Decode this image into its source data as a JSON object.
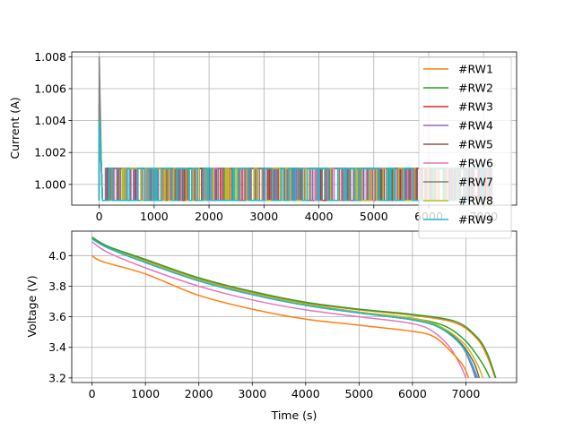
{
  "chart_data": [
    {
      "type": "line",
      "title": "",
      "xlabel": "",
      "ylabel": "Current (A)",
      "xlim": [
        -500,
        7600
      ],
      "ylim": [
        0.9987,
        1.0083
      ],
      "xticks": [
        0,
        1000,
        2000,
        3000,
        4000,
        5000,
        6000,
        7000
      ],
      "xtick_labels": [
        "0",
        "1000",
        "2000",
        "3000",
        "4000",
        "5000",
        "6000",
        "7000"
      ],
      "yticks": [
        1.0,
        1.002,
        1.004,
        1.006,
        1.008
      ],
      "ytick_labels": [
        "1.000",
        "1.002",
        "1.004",
        "1.006",
        "1.008"
      ],
      "grid": true,
      "legend": "right",
      "description": "Current toggles between about 0.999 A and 1.001 A for all cells after an initial spike",
      "series": [
        {
          "name": "#RW1",
          "color": "#ff7f0e",
          "peak": 1.004,
          "low": 0.999,
          "high": 1.001,
          "end": 7100
        },
        {
          "name": "#RW2",
          "color": "#2ca02c",
          "peak": 1.005,
          "low": 0.999,
          "high": 1.001,
          "end": 7100
        },
        {
          "name": "#RW3",
          "color": "#d62728",
          "peak": 1.003,
          "low": 0.999,
          "high": 1.001,
          "end": 7100
        },
        {
          "name": "#RW4",
          "color": "#9467bd",
          "peak": 1.004,
          "low": 0.999,
          "high": 1.001,
          "end": 7100
        },
        {
          "name": "#RW5",
          "color": "#8c564b",
          "peak": 1.006,
          "low": 0.999,
          "high": 1.001,
          "end": 7100
        },
        {
          "name": "#RW6",
          "color": "#e377c2",
          "peak": 1.004,
          "low": 0.999,
          "high": 1.001,
          "end": 7100
        },
        {
          "name": "#RW7",
          "color": "#7f7f7f",
          "peak": 1.008,
          "low": 0.999,
          "high": 1.001,
          "end": 7100
        },
        {
          "name": "#RW8",
          "color": "#bcbd22",
          "peak": 1.004,
          "low": 0.999,
          "high": 1.001,
          "end": 7100
        },
        {
          "name": "#RW9",
          "color": "#17becf",
          "peak": 1.004,
          "low": 0.999,
          "high": 1.001,
          "end": 7100
        }
      ],
      "base_series": {
        "color": "#1f77b4",
        "peak": 1.005
      }
    },
    {
      "type": "line",
      "title": "",
      "xlabel": "Time (s)",
      "ylabel": "Voltage (V)",
      "xlim": [
        -380,
        7950
      ],
      "ylim": [
        3.17,
        4.16
      ],
      "xticks": [
        0,
        1000,
        2000,
        3000,
        4000,
        5000,
        6000,
        7000
      ],
      "xtick_labels": [
        "0",
        "1000",
        "2000",
        "3000",
        "4000",
        "5000",
        "6000",
        "7000"
      ],
      "yticks": [
        3.2,
        3.4,
        3.6,
        3.8,
        4.0
      ],
      "ytick_labels": [
        "3.2",
        "3.4",
        "3.6",
        "3.8",
        "4.0"
      ],
      "grid": true,
      "series": [
        {
          "name": "#RW1",
          "color": "#ff7f0e",
          "points": [
            [
              0,
              4.12
            ],
            [
              300,
              4.06
            ],
            [
              1000,
              3.97
            ],
            [
              2000,
              3.85
            ],
            [
              3000,
              3.76
            ],
            [
              4000,
              3.69
            ],
            [
              5000,
              3.645
            ],
            [
              6000,
              3.61
            ],
            [
              6800,
              3.56
            ],
            [
              7200,
              3.46
            ],
            [
              7400,
              3.34
            ],
            [
              7550,
              3.2
            ]
          ]
        },
        {
          "name": "#RW2",
          "color": "#2ca02c",
          "points": [
            [
              0,
              4.11
            ],
            [
              300,
              4.05
            ],
            [
              1000,
              3.96
            ],
            [
              2000,
              3.84
            ],
            [
              3000,
              3.75
            ],
            [
              4000,
              3.68
            ],
            [
              5000,
              3.63
            ],
            [
              6000,
              3.59
            ],
            [
              6600,
              3.54
            ],
            [
              7000,
              3.44
            ],
            [
              7300,
              3.3
            ],
            [
              7450,
              3.2
            ]
          ]
        },
        {
          "name": "#RW3",
          "color": "#d62728",
          "points": [
            [
              0,
              4.11
            ],
            [
              300,
              4.05
            ],
            [
              1000,
              3.955
            ],
            [
              2000,
              3.835
            ],
            [
              3000,
              3.745
            ],
            [
              4000,
              3.675
            ],
            [
              5000,
              3.625
            ],
            [
              6000,
              3.58
            ],
            [
              6500,
              3.53
            ],
            [
              6900,
              3.42
            ],
            [
              7100,
              3.3
            ],
            [
              7200,
              3.2
            ]
          ]
        },
        {
          "name": "#RW4",
          "color": "#9467bd",
          "points": [
            [
              0,
              4.11
            ],
            [
              300,
              4.05
            ],
            [
              1000,
              3.955
            ],
            [
              2000,
              3.835
            ],
            [
              3000,
              3.745
            ],
            [
              4000,
              3.675
            ],
            [
              5000,
              3.625
            ],
            [
              6000,
              3.58
            ],
            [
              6500,
              3.53
            ],
            [
              6900,
              3.42
            ],
            [
              7080,
              3.3
            ],
            [
              7180,
              3.2
            ]
          ]
        },
        {
          "name": "#RW5",
          "color": "#8c564b",
          "points": [
            [
              0,
              4.11
            ],
            [
              300,
              4.05
            ],
            [
              1000,
              3.96
            ],
            [
              2000,
              3.84
            ],
            [
              3000,
              3.75
            ],
            [
              4000,
              3.68
            ],
            [
              5000,
              3.63
            ],
            [
              6000,
              3.585
            ],
            [
              6500,
              3.535
            ],
            [
              6900,
              3.43
            ],
            [
              7150,
              3.3
            ],
            [
              7250,
              3.2
            ]
          ]
        },
        {
          "name": "#RW6",
          "color": "#e377c2",
          "points": [
            [
              0,
              4.09
            ],
            [
              300,
              4.02
            ],
            [
              1000,
              3.92
            ],
            [
              2000,
              3.8
            ],
            [
              3000,
              3.71
            ],
            [
              4000,
              3.645
            ],
            [
              5000,
              3.6
            ],
            [
              6000,
              3.555
            ],
            [
              6400,
              3.5
            ],
            [
              6700,
              3.4
            ],
            [
              6900,
              3.28
            ],
            [
              7000,
              3.2
            ]
          ]
        },
        {
          "name": "#RW7",
          "color": "#7f7f7f",
          "points": [
            [
              0,
              4.11
            ],
            [
              300,
              4.05
            ],
            [
              1000,
              3.955
            ],
            [
              2000,
              3.835
            ],
            [
              3000,
              3.745
            ],
            [
              4000,
              3.675
            ],
            [
              5000,
              3.625
            ],
            [
              6000,
              3.58
            ],
            [
              6500,
              3.53
            ],
            [
              6900,
              3.42
            ],
            [
              7100,
              3.3
            ],
            [
              7220,
              3.2
            ]
          ]
        },
        {
          "name": "#RW8",
          "color": "#bcbd22",
          "points": [
            [
              0,
              4.11
            ],
            [
              300,
              4.05
            ],
            [
              1000,
              3.96
            ],
            [
              2000,
              3.84
            ],
            [
              3000,
              3.75
            ],
            [
              4000,
              3.68
            ],
            [
              5000,
              3.63
            ],
            [
              6000,
              3.59
            ],
            [
              6500,
              3.54
            ],
            [
              6950,
              3.43
            ],
            [
              7200,
              3.3
            ],
            [
              7320,
              3.2
            ]
          ]
        },
        {
          "name": "#RW9",
          "color": "#17becf",
          "points": [
            [
              0,
              4.11
            ],
            [
              300,
              4.05
            ],
            [
              1000,
              3.955
            ],
            [
              2000,
              3.835
            ],
            [
              3000,
              3.745
            ],
            [
              4000,
              3.675
            ],
            [
              5000,
              3.625
            ],
            [
              6000,
              3.58
            ],
            [
              6500,
              3.53
            ],
            [
              6900,
              3.42
            ],
            [
              7100,
              3.3
            ],
            [
              7210,
              3.2
            ]
          ]
        },
        {
          "name": "",
          "color": "#ff7f0e",
          "points": [
            [
              0,
              4.0
            ],
            [
              200,
              3.96
            ],
            [
              1000,
              3.88
            ],
            [
              2000,
              3.74
            ],
            [
              3000,
              3.65
            ],
            [
              4000,
              3.585
            ],
            [
              5000,
              3.545
            ],
            [
              6000,
              3.505
            ],
            [
              6400,
              3.47
            ],
            [
              6700,
              3.38
            ],
            [
              6950,
              3.28
            ],
            [
              7050,
              3.2
            ]
          ]
        },
        {
          "name": "",
          "color": "#2ca02c",
          "points": [
            [
              0,
              4.12
            ],
            [
              300,
              4.06
            ],
            [
              1000,
              3.975
            ],
            [
              2000,
              3.855
            ],
            [
              3000,
              3.765
            ],
            [
              4000,
              3.695
            ],
            [
              5000,
              3.65
            ],
            [
              6000,
              3.615
            ],
            [
              6800,
              3.57
            ],
            [
              7200,
              3.47
            ],
            [
              7400,
              3.36
            ],
            [
              7560,
              3.2
            ]
          ]
        }
      ]
    }
  ]
}
